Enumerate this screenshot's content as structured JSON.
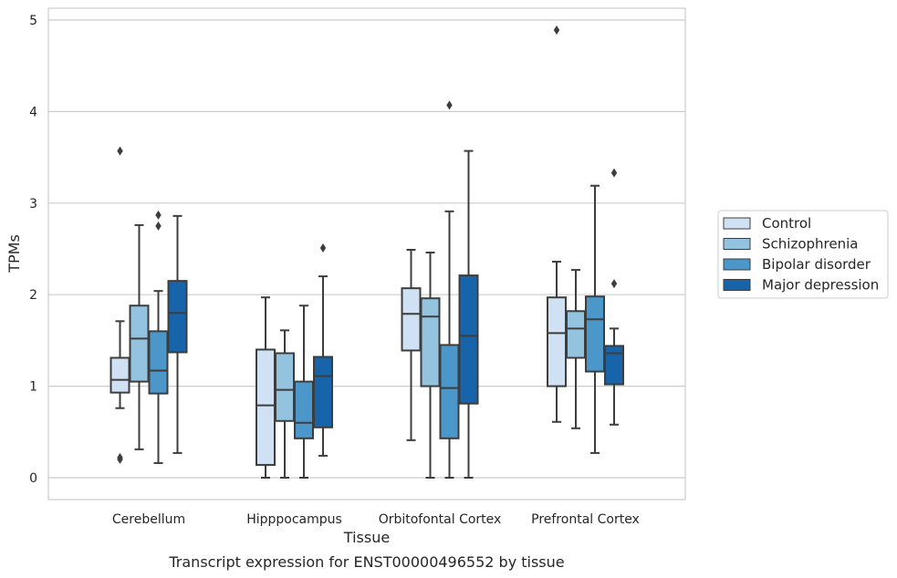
{
  "chart_data": {
    "type": "box",
    "xlabel": "Tissue",
    "ylabel": "TPMs",
    "caption": "Transcript expression for ENST00000496552 by tissue",
    "ylim": [
      -0.24,
      5.14
    ],
    "yticks": [
      "0",
      "1",
      "2",
      "3",
      "4",
      "5"
    ],
    "categories": [
      "Cerebellum",
      "Hipppocampus",
      "Orbitofontal Cortex",
      "Prefrontal Cortex"
    ],
    "grid": "horizontal",
    "legend_position": "right",
    "series": [
      {
        "name": "Control",
        "color": "#cfe1f2",
        "boxes": [
          {
            "whislo": 0.76,
            "q1": 0.93,
            "med": 1.07,
            "q3": 1.31,
            "whishi": 1.71,
            "fliers": [
              3.57,
              0.2,
              0.22
            ]
          },
          {
            "whislo": 0.0,
            "q1": 0.14,
            "med": 0.79,
            "q3": 1.4,
            "whishi": 1.97,
            "fliers": []
          },
          {
            "whislo": 0.41,
            "q1": 1.39,
            "med": 1.79,
            "q3": 2.07,
            "whishi": 2.49,
            "fliers": []
          },
          {
            "whislo": 0.61,
            "q1": 1.0,
            "med": 1.58,
            "q3": 1.97,
            "whishi": 2.36,
            "fliers": [
              4.89
            ]
          }
        ]
      },
      {
        "name": "Schizophrenia",
        "color": "#93c3df",
        "boxes": [
          {
            "whislo": 0.31,
            "q1": 1.05,
            "med": 1.52,
            "q3": 1.88,
            "whishi": 2.76,
            "fliers": []
          },
          {
            "whislo": 0.0,
            "q1": 0.62,
            "med": 0.96,
            "q3": 1.36,
            "whishi": 1.61,
            "fliers": []
          },
          {
            "whislo": 0.0,
            "q1": 1.0,
            "med": 1.76,
            "q3": 1.96,
            "whishi": 2.46,
            "fliers": []
          },
          {
            "whislo": 0.54,
            "q1": 1.31,
            "med": 1.63,
            "q3": 1.82,
            "whishi": 2.27,
            "fliers": []
          }
        ]
      },
      {
        "name": "Bipolar disorder",
        "color": "#4b97c9",
        "boxes": [
          {
            "whislo": 0.16,
            "q1": 0.92,
            "med": 1.17,
            "q3": 1.6,
            "whishi": 2.04,
            "fliers": [
              2.75,
              2.87
            ]
          },
          {
            "whislo": 0.0,
            "q1": 0.43,
            "med": 0.6,
            "q3": 1.05,
            "whishi": 1.88,
            "fliers": []
          },
          {
            "whislo": 0.0,
            "q1": 0.43,
            "med": 0.98,
            "q3": 1.45,
            "whishi": 2.91,
            "fliers": [
              4.07
            ]
          },
          {
            "whislo": 0.27,
            "q1": 1.16,
            "med": 1.73,
            "q3": 1.98,
            "whishi": 3.19,
            "fliers": []
          }
        ]
      },
      {
        "name": "Major depression",
        "color": "#1764ab",
        "boxes": [
          {
            "whislo": 0.27,
            "q1": 1.37,
            "med": 1.8,
            "q3": 2.15,
            "whishi": 2.86,
            "fliers": []
          },
          {
            "whislo": 0.24,
            "q1": 0.55,
            "med": 1.11,
            "q3": 1.32,
            "whishi": 2.2,
            "fliers": [
              2.51
            ]
          },
          {
            "whislo": 0.0,
            "q1": 0.81,
            "med": 1.55,
            "q3": 2.21,
            "whishi": 3.57,
            "fliers": []
          },
          {
            "whislo": 0.58,
            "q1": 1.02,
            "med": 1.36,
            "q3": 1.44,
            "whishi": 1.63,
            "fliers": [
              3.33,
              2.12
            ]
          }
        ]
      }
    ]
  }
}
